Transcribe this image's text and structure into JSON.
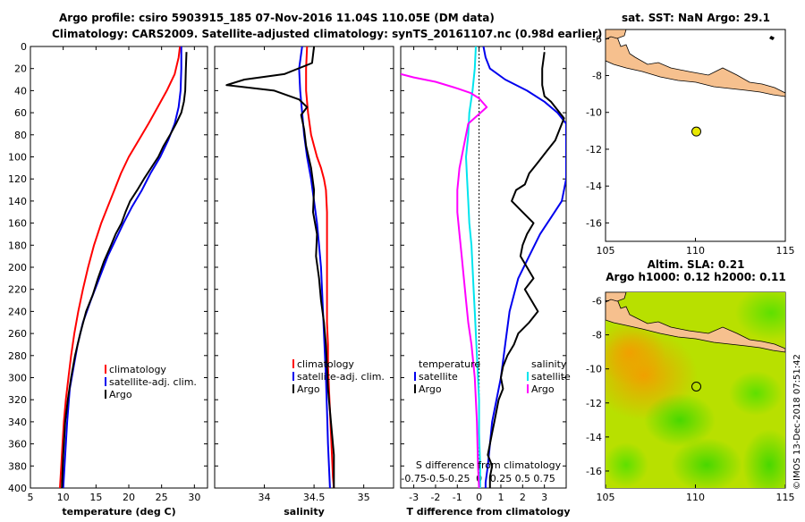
{
  "header": {
    "line1": "Argo profile: csiro 5903915_185 07-Nov-2016 11.04S 110.05E (DM data)",
    "line2": "Climatology: CARS2009. Satellite-adjusted climatology: synTS_20161107.nc (0.98d earlier)"
  },
  "colors": {
    "climatology": "#ff0000",
    "satellite": "#0000ee",
    "argo": "#000000",
    "s_satellite": "#00e5ee",
    "s_argo": "#ff00ff",
    "land": "#f6c08e"
  },
  "chart_data": [
    {
      "type": "line",
      "name": "temperature-panel",
      "xlabel": "temperature (deg C)",
      "ylabel": "",
      "xlim": [
        5,
        32
      ],
      "ylim": [
        400,
        0
      ],
      "xticks": [
        "5",
        "10",
        "15",
        "20",
        "25",
        "30"
      ],
      "xtick_values": [
        5,
        10,
        15,
        20,
        25,
        30
      ],
      "yticks": [
        "0",
        "20",
        "40",
        "60",
        "80",
        "100",
        "120",
        "140",
        "160",
        "180",
        "200",
        "220",
        "240",
        "260",
        "280",
        "300",
        "320",
        "340",
        "360",
        "380",
        "400"
      ],
      "ytick_values": [
        0,
        20,
        40,
        60,
        80,
        100,
        120,
        140,
        160,
        180,
        200,
        220,
        240,
        260,
        280,
        300,
        320,
        340,
        360,
        380,
        400
      ],
      "legend": [
        "climatology",
        "satellite-adj. clim.",
        "Argo"
      ],
      "legend_position": "lower-right",
      "series": [
        {
          "name": "climatology",
          "color": "#ff0000",
          "x": [
            27.8,
            27.6,
            27.0,
            25.8,
            24.4,
            23.0,
            21.5,
            20.0,
            18.8,
            17.8,
            16.8,
            15.8,
            14.7,
            13.8,
            13.0,
            12.3,
            11.7,
            11.2,
            10.8,
            10.4,
            10.1,
            9.9,
            9.7,
            9.5
          ],
          "y": [
            0,
            10,
            25,
            40,
            55,
            70,
            85,
            100,
            115,
            130,
            145,
            160,
            180,
            200,
            220,
            240,
            260,
            280,
            300,
            320,
            340,
            360,
            380,
            400
          ]
        },
        {
          "name": "satellite-adj. clim.",
          "color": "#0000ee",
          "x": [
            28.0,
            28.0,
            27.9,
            27.6,
            27.0,
            26.0,
            24.8,
            23.3,
            22.0,
            20.5,
            19.2,
            18.0,
            16.8,
            15.5,
            14.2,
            13.0,
            12.2,
            11.6,
            11.0,
            10.6,
            10.3,
            10.0
          ],
          "y": [
            0,
            20,
            40,
            55,
            70,
            85,
            100,
            115,
            130,
            145,
            160,
            175,
            190,
            210,
            230,
            250,
            270,
            290,
            310,
            340,
            370,
            400
          ]
        },
        {
          "name": "Argo",
          "color": "#000000",
          "x": [
            28.8,
            28.7,
            28.6,
            28.4,
            28.0,
            27.2,
            26.3,
            25.3,
            24.5,
            23.4,
            22.3,
            21.3,
            20.2,
            19.5,
            18.9,
            18.0,
            17.3,
            16.2,
            15.3,
            14.5,
            13.5,
            12.6,
            11.8,
            11.2,
            10.7,
            10.3,
            10.0,
            9.8
          ],
          "y": [
            5,
            20,
            40,
            50,
            60,
            70,
            80,
            90,
            100,
            110,
            120,
            130,
            140,
            150,
            160,
            170,
            180,
            195,
            210,
            225,
            240,
            260,
            280,
            300,
            320,
            340,
            370,
            400
          ]
        }
      ]
    },
    {
      "type": "line",
      "name": "salinity-panel",
      "xlabel": "salinity",
      "xlim": [
        33.5,
        35.3
      ],
      "ylim": [
        400,
        0
      ],
      "xticks": [
        "34",
        "34.5",
        "35"
      ],
      "xtick_values": [
        34,
        34.5,
        35
      ],
      "legend": [
        "climatology",
        "satellite-adj. clim.",
        "Argo"
      ],
      "legend_position": "lower-right",
      "series": [
        {
          "name": "climatology",
          "color": "#ff0000",
          "x": [
            34.43,
            34.42,
            34.42,
            34.44,
            34.47,
            34.5,
            34.53,
            34.57,
            34.6,
            34.62,
            34.63,
            34.63,
            34.63,
            34.63,
            34.63,
            34.63,
            34.64,
            34.64,
            34.65,
            34.66,
            34.67,
            34.68,
            34.69,
            34.7
          ],
          "y": [
            0,
            20,
            40,
            60,
            80,
            90,
            100,
            110,
            120,
            130,
            150,
            170,
            190,
            210,
            230,
            250,
            270,
            290,
            310,
            330,
            350,
            370,
            390,
            400
          ]
        },
        {
          "name": "satellite-adj. clim.",
          "color": "#0000ee",
          "x": [
            34.38,
            34.35,
            34.36,
            34.38,
            34.4,
            34.43,
            34.47,
            34.5,
            34.53,
            34.55,
            34.57,
            34.58,
            34.59,
            34.6,
            34.61,
            34.62,
            34.63,
            34.64,
            34.65,
            34.66
          ],
          "y": [
            0,
            20,
            40,
            60,
            80,
            100,
            120,
            140,
            160,
            180,
            200,
            220,
            240,
            260,
            280,
            300,
            330,
            360,
            380,
            400
          ]
        },
        {
          "name": "Argo",
          "color": "#000000",
          "x": [
            34.5,
            34.48,
            34.2,
            33.8,
            33.62,
            34.1,
            34.35,
            34.43,
            34.37,
            34.4,
            34.42,
            34.47,
            34.5,
            34.49,
            34.53,
            34.52,
            34.55,
            34.57,
            34.6,
            34.62,
            34.63,
            34.64,
            34.66,
            34.68,
            34.7,
            34.7
          ],
          "y": [
            0,
            15,
            25,
            30,
            35,
            40,
            48,
            55,
            62,
            75,
            90,
            110,
            130,
            150,
            170,
            190,
            210,
            230,
            250,
            270,
            290,
            310,
            330,
            350,
            370,
            400
          ]
        }
      ]
    },
    {
      "type": "line",
      "name": "difference-panel",
      "xlabel": "T difference from climatology",
      "xlabel2": "S difference from climatology",
      "xlim": [
        -3.6,
        4.0
      ],
      "ylim": [
        400,
        0
      ],
      "xticks": [
        "-3",
        "-2",
        "-1",
        "0",
        "1",
        "2",
        "3"
      ],
      "xtick_values": [
        -3,
        -2,
        -1,
        0,
        1,
        2,
        3
      ],
      "sticks": [
        "-0.75",
        "-0.5",
        "-0.25",
        "0",
        "0.25",
        "0.5",
        "0.75"
      ],
      "stick_values": [
        -3,
        -2,
        -1,
        0,
        1,
        2,
        3
      ],
      "legend_temperature_title": "temperature",
      "legend_salinity_title": "salinity",
      "legend_left": [
        "satellite",
        "Argo"
      ],
      "legend_right": [
        "satellite",
        "Argo"
      ],
      "series": [
        {
          "name": "T satellite",
          "color": "#0000ee",
          "x": [
            0.2,
            0.3,
            0.5,
            1.2,
            2.2,
            3.0,
            3.6,
            4.0,
            4.0,
            3.8,
            3.3,
            2.8,
            2.3,
            1.8,
            1.4,
            1.2,
            1.0,
            0.8,
            0.6,
            0.5,
            0.4,
            0.3,
            0.3
          ],
          "y": [
            0,
            10,
            20,
            30,
            40,
            50,
            60,
            70,
            120,
            140,
            155,
            170,
            190,
            210,
            240,
            270,
            300,
            320,
            340,
            360,
            380,
            395,
            400
          ]
        },
        {
          "name": "T Argo",
          "color": "#000000",
          "x": [
            3.0,
            2.9,
            2.9,
            3.0,
            3.3,
            3.5,
            3.9,
            3.7,
            3.5,
            3.1,
            2.7,
            2.3,
            2.1,
            1.7,
            1.5,
            2.0,
            2.5,
            2.2,
            2.0,
            1.9,
            2.2,
            2.5,
            2.1,
            2.4,
            2.7,
            2.3,
            1.8,
            1.6,
            1.3,
            1.1,
            1.0,
            1.1,
            0.9,
            0.8,
            0.7,
            0.6,
            0.5,
            0.4,
            0.6,
            0.5,
            0.5
          ],
          "y": [
            5,
            20,
            35,
            45,
            50,
            55,
            65,
            75,
            85,
            95,
            105,
            115,
            125,
            130,
            140,
            150,
            160,
            170,
            180,
            190,
            200,
            210,
            220,
            230,
            240,
            250,
            260,
            270,
            280,
            290,
            300,
            310,
            320,
            330,
            340,
            350,
            360,
            370,
            380,
            390,
            400
          ]
        },
        {
          "name": "S satellite",
          "color": "#00e5ee",
          "x": [
            -0.15,
            -0.2,
            -0.3,
            -0.45,
            -0.5,
            -0.6,
            -0.55,
            -0.5,
            -0.45,
            -0.35,
            -0.3,
            -0.25,
            -0.2,
            -0.15,
            -0.1,
            -0.05,
            0.0,
            0.0,
            0.05,
            0.05
          ],
          "y": [
            0,
            20,
            40,
            60,
            80,
            100,
            120,
            140,
            160,
            180,
            200,
            220,
            240,
            260,
            280,
            300,
            320,
            350,
            380,
            400
          ]
        },
        {
          "name": "S Argo",
          "color": "#ff00ff",
          "x": [
            -3.6,
            -3.0,
            -2.0,
            -1.0,
            -0.4,
            0.0,
            0.35,
            -0.5,
            -0.7,
            -0.9,
            -1.0,
            -1.0,
            -0.9,
            -0.8,
            -0.7,
            -0.6,
            -0.5,
            -0.35,
            -0.2,
            -0.1,
            -0.05,
            0.0
          ],
          "y": [
            25,
            28,
            32,
            38,
            42,
            47,
            55,
            70,
            90,
            110,
            130,
            150,
            170,
            190,
            210,
            230,
            250,
            270,
            300,
            340,
            380,
            400
          ]
        }
      ]
    },
    {
      "type": "heatmap",
      "name": "sst-map",
      "title": "sat. SST: NaN Argo: 29.1",
      "xlim": [
        105,
        115
      ],
      "ylim": [
        -17,
        -5.5
      ],
      "xticks": [
        "105",
        "110",
        "115"
      ],
      "yticks": [
        "-6",
        "-8",
        "-10",
        "-12",
        "-14",
        "-16"
      ],
      "argo_position": {
        "lon": 110.05,
        "lat": -11.04
      }
    },
    {
      "type": "heatmap",
      "name": "sla-map",
      "title": "Altim. SLA: 0.21",
      "subtitle": "Argo h1000: 0.12 h2000: 0.11",
      "xlim": [
        105,
        115
      ],
      "ylim": [
        -17,
        -5.5
      ],
      "xticks": [
        "105",
        "110",
        "115"
      ],
      "yticks": [
        "-6",
        "-8",
        "-10",
        "-12",
        "-14",
        "-16"
      ],
      "argo_position": {
        "lon": 110.05,
        "lat": -11.04
      }
    }
  ],
  "footer": {
    "credit": "©IMOS 13-Dec-2018 07:51:42"
  }
}
